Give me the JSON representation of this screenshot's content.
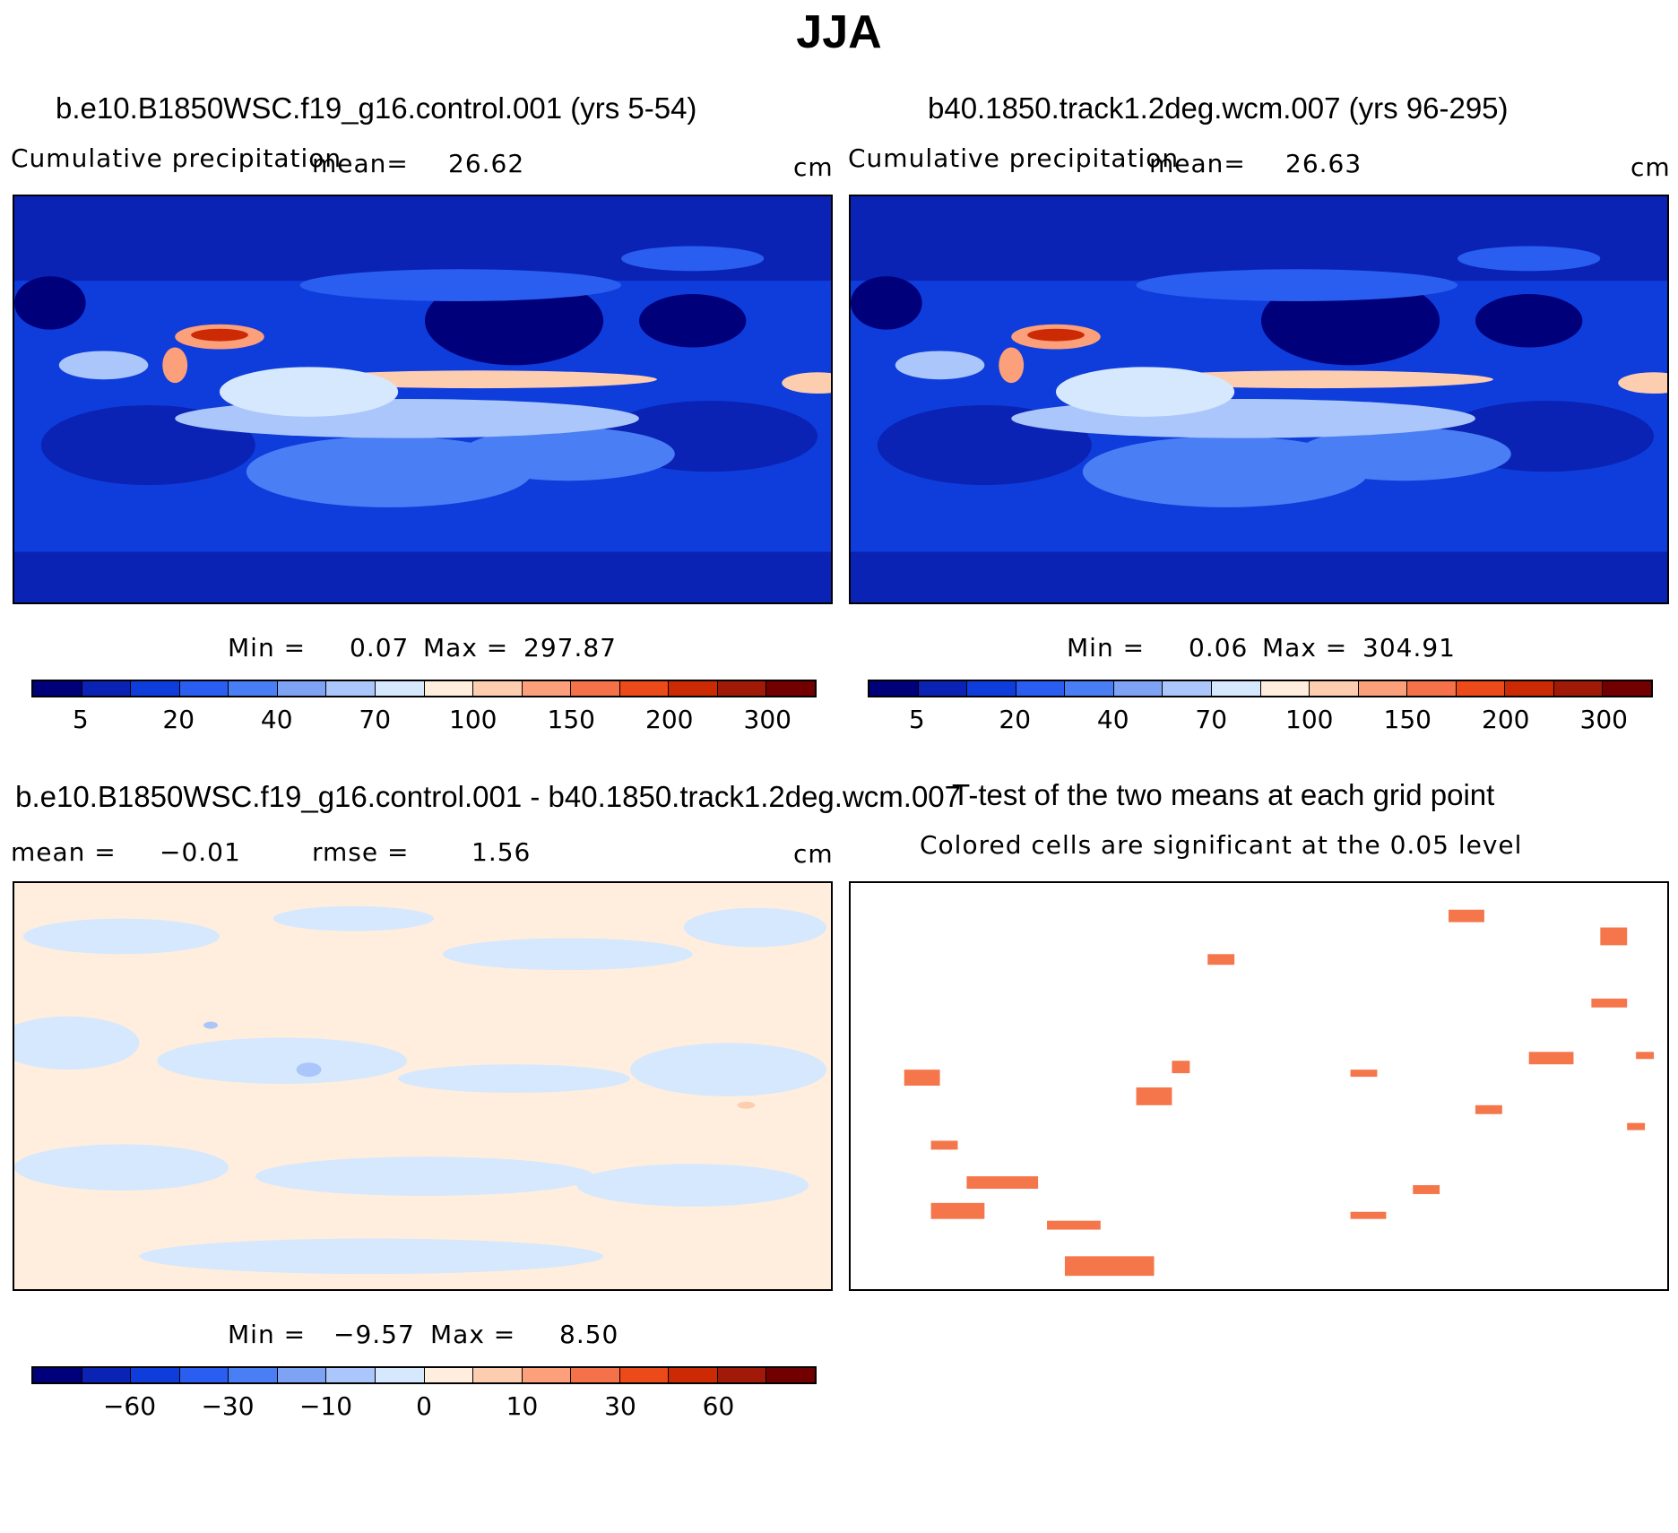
{
  "title": "JJA",
  "panels": {
    "p1": {
      "title": "b.e10.B1850WSC.f19_g16.control.001 (yrs 5-54)",
      "left_label": "Cumulative precipitation",
      "mean_label": "mean=",
      "mean_value": "26.62",
      "units": "cm",
      "min_label": "Min =",
      "min_value": "0.07",
      "max_label": "Max =",
      "max_value": "297.87"
    },
    "p2": {
      "title": "b40.1850.track1.2deg.wcm.007 (yrs 96-295)",
      "left_label": "Cumulative precipitation",
      "mean_label": "mean=",
      "mean_value": "26.63",
      "units": "cm",
      "min_label": "Min =",
      "min_value": "0.06",
      "max_label": "Max =",
      "max_value": "304.91"
    },
    "p3": {
      "title": "b.e10.B1850WSC.f19_g16.control.001 - b40.1850.track1.2deg.wcm.007",
      "mean_label": "mean =",
      "mean_value": "−0.01",
      "rmse_label": "rmse =",
      "rmse_value": "1.56",
      "units": "cm",
      "min_label": "Min =",
      "min_value": "−9.57",
      "max_label": "Max =",
      "max_value": "8.50"
    },
    "p4": {
      "title": "T-test of the two means at each grid point",
      "subtitle": "Colored cells are significant at the 0.05 level"
    }
  },
  "colorbars": {
    "precip": {
      "colors": [
        "#00007a",
        "#0a23b4",
        "#0f3ddc",
        "#2a5ef0",
        "#4a7ef4",
        "#7ea3f5",
        "#abc6fa",
        "#d6e8fd",
        "#ffeede",
        "#fdcdb0",
        "#fba07a",
        "#f5714a",
        "#ec4a19",
        "#cc2a05",
        "#a11a08",
        "#720000"
      ],
      "ticks": [
        "5",
        "20",
        "40",
        "70",
        "100",
        "150",
        "200",
        "300"
      ]
    },
    "diff": {
      "colors": [
        "#00007a",
        "#0a23b4",
        "#0f3ddc",
        "#2a5ef0",
        "#4a7ef4",
        "#7ea3f5",
        "#abc6fa",
        "#d6e8fd",
        "#ffeede",
        "#fdcdb0",
        "#fba07a",
        "#f5714a",
        "#ec4a19",
        "#cc2a05",
        "#a11a08",
        "#720000"
      ],
      "ticks": [
        "−60",
        "−30",
        "−10",
        "0",
        "10",
        "30",
        "60"
      ]
    }
  },
  "significance_color": "#f4764a"
}
